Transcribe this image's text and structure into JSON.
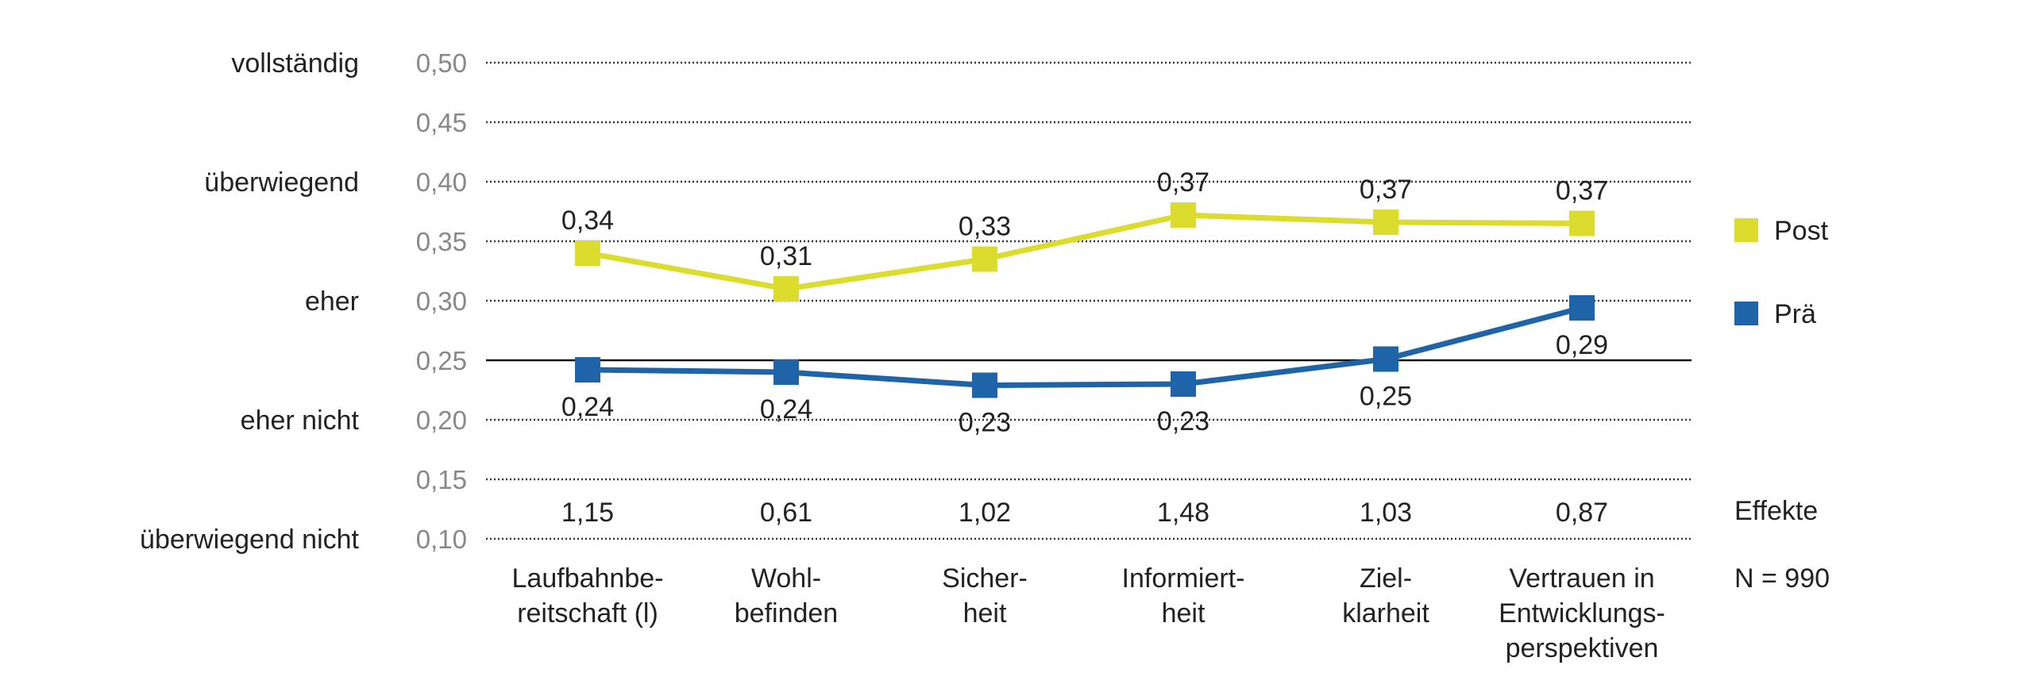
{
  "chart_data": {
    "type": "line",
    "title": "",
    "ylim": [
      0.1,
      0.5
    ],
    "yticks": [
      "0,10",
      "0,15",
      "0,20",
      "0,25",
      "0,30",
      "0,35",
      "0,40",
      "0,45",
      "0,50"
    ],
    "ytick_values": [
      0.1,
      0.15,
      0.2,
      0.25,
      0.3,
      0.35,
      0.4,
      0.45,
      0.5
    ],
    "rating_labels": [
      {
        "label": "überwiegend nicht",
        "value": 0.1
      },
      {
        "label": "eher nicht",
        "value": 0.2
      },
      {
        "label": "eher",
        "value": 0.3
      },
      {
        "label": "überwiegend",
        "value": 0.4
      },
      {
        "label": "vollständig",
        "value": 0.5
      }
    ],
    "reference_line": 0.25,
    "grid": "dotted",
    "categories": [
      [
        "Laufbahnbe-",
        "reitschaft (l)"
      ],
      [
        "Wohl-",
        "befinden"
      ],
      [
        "Sicher-",
        "heit"
      ],
      [
        "Informiert-",
        "heit"
      ],
      [
        "Ziel-",
        "klarheit"
      ],
      [
        "Vertrauen in",
        "Entwicklungs-",
        "perspektiven"
      ]
    ],
    "series": [
      {
        "name": "Post",
        "color": "#dcdc2e",
        "values": [
          0.34,
          0.31,
          0.335,
          0.372,
          0.366,
          0.365
        ],
        "labels": [
          "0,34",
          "0,31",
          "0,33",
          "0,37",
          "0,37",
          "0,37"
        ],
        "label_position": "above"
      },
      {
        "name": "Prä",
        "color": "#1f64a8",
        "values": [
          0.242,
          0.24,
          0.229,
          0.23,
          0.251,
          0.294
        ],
        "labels": [
          "0,24",
          "0,24",
          "0,23",
          "0,23",
          "0,25",
          "0,29"
        ],
        "label_position": "below"
      }
    ],
    "effects": {
      "label": "Effekte",
      "values": [
        "1,15",
        "0,61",
        "1,02",
        "1,48",
        "1,03",
        "0,87"
      ]
    },
    "sample": "N = 990",
    "legend_position": "right"
  }
}
